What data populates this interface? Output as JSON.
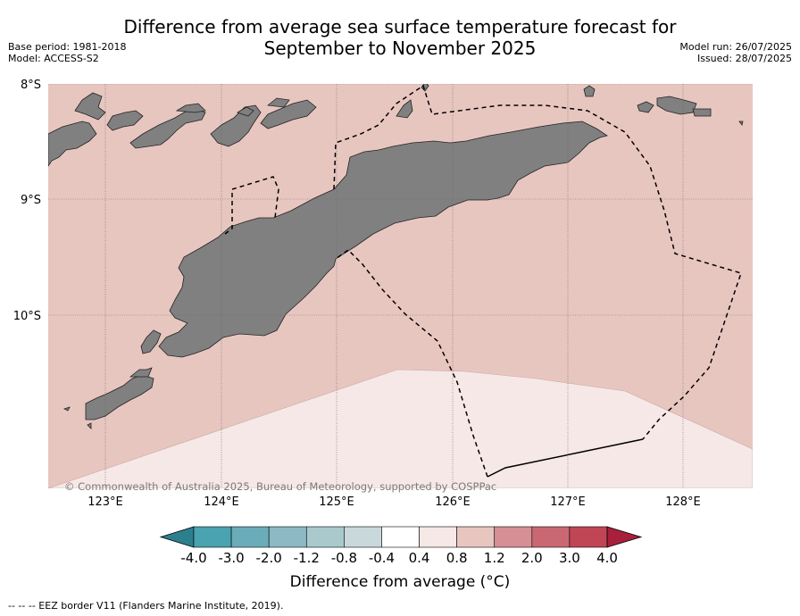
{
  "title_line1": "Difference from average sea surface temperature forecast for",
  "title_line2": "September to November 2025",
  "base_period": "Base period: 1981-2018",
  "model": "Model: ACCESS-S2",
  "model_run": "Model run: 26/07/2025",
  "issued": "Issued: 28/07/2025",
  "copyright": "© Commonwealth of Australia 2025, Bureau of Meteorology, supported by COSPPac",
  "footnote": "--  --  -- EEZ border V11 (Flanders Marine Institute, 2019).",
  "lat_labels": [
    "8°S",
    "9°S",
    "10°S"
  ],
  "lon_labels": [
    "123°E",
    "124°E",
    "125°E",
    "126°E",
    "127°E",
    "128°E"
  ],
  "colorbar": {
    "title": "Difference from average (°C)",
    "ticks": [
      "-4.0",
      "-3.0",
      "-2.0",
      "-1.2",
      "-0.8",
      "-0.4",
      "0.4",
      "0.8",
      "1.2",
      "2.0",
      "3.0",
      "4.0"
    ],
    "colors": [
      "#2e7f8e",
      "#4aa3b0",
      "#6aadb9",
      "#8cb9c4",
      "#a9c9cd",
      "#c9d8db",
      "#ffffff",
      "#f6e8e6",
      "#e8c6c0",
      "#d68f94",
      "#c96873",
      "#c04656",
      "#a8203c"
    ]
  },
  "colors": {
    "sea_0_8_1_2": "#e8c6c0",
    "sea_0_4_0_8": "#f6e8e6",
    "land": "#808080"
  }
}
